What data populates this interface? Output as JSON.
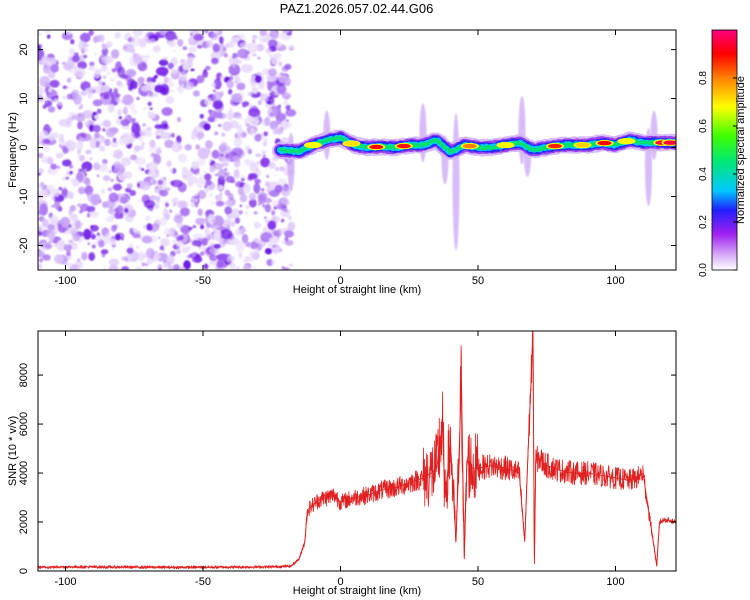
{
  "title": "PAZ1.2026.057.02.44.G06",
  "chart_data": [
    {
      "type": "heatmap",
      "name": "spectrogram",
      "xlabel": "Height of straight line (km)",
      "ylabel": "Frequency (Hz)",
      "xlim": [
        -110,
        122
      ],
      "ylim": [
        -25,
        24
      ],
      "xticks": [
        -100,
        -50,
        0,
        50,
        100
      ],
      "yticks": [
        -20,
        -10,
        0,
        10,
        20
      ],
      "noise_region_x": [
        -110,
        -20
      ],
      "signal_start_x": -22,
      "signal_track": {
        "x": [
          -22,
          -15,
          -10,
          -5,
          0,
          5,
          10,
          15,
          20,
          25,
          30,
          35,
          40,
          45,
          50,
          55,
          60,
          65,
          70,
          75,
          80,
          85,
          90,
          95,
          100,
          105,
          110,
          115,
          122
        ],
        "freq": [
          -0.5,
          -0.8,
          0.5,
          1.5,
          2.0,
          0.5,
          0.0,
          0.2,
          0.0,
          0.5,
          0.5,
          1.5,
          -1.0,
          0.5,
          0.0,
          0.0,
          0.5,
          1.0,
          -0.5,
          0.0,
          0.5,
          0.5,
          0.5,
          1.0,
          0.5,
          1.5,
          1.0,
          1.0,
          1.0
        ]
      },
      "colorbar": {
        "label": "Normalized spectral amplitude",
        "range": [
          0.0,
          1.0
        ],
        "ticks": [
          "0.0",
          "0.2",
          "0.4",
          "0.6",
          "0.8"
        ],
        "tick_values": [
          0.0,
          0.2,
          0.4,
          0.6,
          0.8
        ],
        "colors": [
          "#ffffff",
          "#a020f0",
          "#2020ff",
          "#00c8ff",
          "#00ff40",
          "#ffff00",
          "#ff8000",
          "#ff0000",
          "#ff0080"
        ]
      }
    },
    {
      "type": "line",
      "name": "snr",
      "xlabel": "Height of straight line (km)",
      "ylabel": "SNR (10 * v/v)",
      "xlim": [
        -110,
        122
      ],
      "ylim": [
        0,
        9800
      ],
      "xticks": [
        -100,
        -50,
        0,
        50,
        100
      ],
      "yticks": [
        0,
        2000,
        4000,
        6000,
        8000
      ],
      "line_color": "#e02020",
      "x": [
        -110,
        -100,
        -80,
        -60,
        -40,
        -25,
        -18,
        -15,
        -13,
        -12,
        -10,
        -8,
        -5,
        -2,
        0,
        5,
        10,
        15,
        20,
        25,
        30,
        33,
        35,
        37,
        38,
        40,
        42,
        44,
        45,
        46,
        48,
        50,
        55,
        60,
        65,
        67,
        68,
        70,
        70.5,
        71,
        72,
        75,
        80,
        85,
        90,
        95,
        100,
        105,
        108,
        110,
        112,
        114,
        115,
        116,
        118,
        120,
        122
      ],
      "y": [
        150,
        170,
        160,
        150,
        160,
        170,
        200,
        500,
        1200,
        2500,
        2700,
        2900,
        3000,
        3100,
        2800,
        3000,
        3100,
        3300,
        3400,
        3600,
        3800,
        4000,
        4200,
        6000,
        3000,
        5200,
        1200,
        7700,
        500,
        4500,
        4200,
        4200,
        4300,
        4200,
        4000,
        1200,
        4300,
        9700,
        300,
        4500,
        4600,
        4300,
        4100,
        4000,
        4000,
        3900,
        3800,
        3700,
        3800,
        4000,
        2500,
        1000,
        200,
        2000,
        2100,
        2050,
        2000
      ]
    }
  ]
}
